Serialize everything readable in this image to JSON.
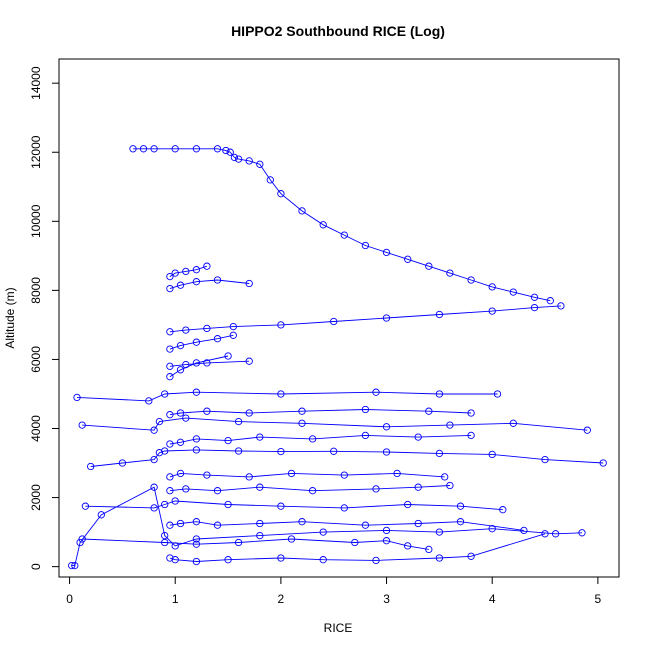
{
  "chart_data": {
    "type": "scatter",
    "title": "HIPPO2 Southbound RICE (Log)",
    "xlabel": "RICE",
    "ylabel": "Altitude (m)",
    "xlim": [
      -0.1,
      5.2
    ],
    "ylim": [
      -300,
      14700
    ],
    "x_ticks": [
      0,
      1,
      2,
      3,
      4,
      5
    ],
    "y_ticks": [
      0,
      2000,
      4000,
      6000,
      8000,
      10000,
      12000,
      14000
    ],
    "x_tick_labels": [
      "0",
      "1",
      "2",
      "3",
      "4",
      "5"
    ],
    "y_tick_labels": [
      "0",
      "2000",
      "4000",
      "6000",
      "8000",
      "10000",
      "12000",
      "14000"
    ],
    "marker": "open-circle",
    "connect_points": true,
    "color": "#0000ff",
    "series": [
      {
        "x": [
          0.02,
          0.05,
          0.1,
          0.3,
          0.8,
          0.9,
          1.0,
          1.2,
          1.8,
          2.4,
          3.0,
          3.5,
          4.0,
          4.6,
          4.85
        ],
        "y": [
          30,
          30,
          700,
          1500,
          2300,
          900,
          600,
          800,
          900,
          1000,
          1050,
          1000,
          1100,
          950,
          980
        ]
      },
      {
        "x": [
          0.2,
          0.5,
          0.8,
          0.85,
          0.9,
          1.2,
          1.6,
          2.0,
          2.5,
          3.0,
          3.5,
          4.0,
          4.5,
          5.05
        ],
        "y": [
          2900,
          3000,
          3100,
          3300,
          3350,
          3380,
          3350,
          3330,
          3340,
          3320,
          3280,
          3250,
          3100,
          3000
        ]
      },
      {
        "x": [
          0.12,
          0.8,
          0.85,
          1.1,
          1.6,
          2.2,
          3.0,
          3.6,
          4.2,
          4.9
        ],
        "y": [
          4100,
          3950,
          4200,
          4300,
          4200,
          4150,
          4050,
          4100,
          4150,
          3950
        ]
      },
      {
        "x": [
          0.07,
          0.75,
          0.9,
          1.2,
          2.0,
          2.9,
          3.5,
          4.05
        ],
        "y": [
          4900,
          4800,
          5000,
          5050,
          5000,
          5050,
          5000,
          5000
        ]
      },
      {
        "x": [
          0.15,
          0.8,
          0.9,
          1.0,
          1.5,
          2.0,
          2.6,
          3.2,
          3.7,
          4.1
        ],
        "y": [
          1750,
          1700,
          1800,
          1900,
          1800,
          1750,
          1700,
          1800,
          1750,
          1650
        ]
      },
      {
        "x": [
          0.12,
          0.9,
          1.2,
          1.6,
          2.1,
          2.7,
          3.0,
          3.2,
          3.4
        ],
        "y": [
          800,
          700,
          650,
          700,
          800,
          700,
          750,
          600,
          500
        ]
      },
      {
        "x": [
          0.95,
          1.0,
          1.2,
          1.5,
          2.0,
          2.4,
          2.9,
          3.5,
          3.8,
          4.5
        ],
        "y": [
          250,
          200,
          150,
          200,
          250,
          200,
          180,
          250,
          300,
          950
        ]
      },
      {
        "x": [
          0.95,
          1.05,
          1.2,
          1.4,
          1.8,
          2.2,
          2.8,
          3.3,
          3.7,
          4.3
        ],
        "y": [
          1200,
          1250,
          1300,
          1200,
          1250,
          1300,
          1200,
          1250,
          1300,
          1050
        ]
      },
      {
        "x": [
          0.95,
          1.1,
          1.4,
          1.8,
          2.3,
          2.9,
          3.3,
          3.6
        ],
        "y": [
          2200,
          2250,
          2200,
          2300,
          2200,
          2250,
          2300,
          2350
        ]
      },
      {
        "x": [
          0.95,
          1.05,
          1.3,
          1.7,
          2.1,
          2.6,
          3.1,
          3.55
        ],
        "y": [
          2600,
          2700,
          2650,
          2600,
          2700,
          2650,
          2700,
          2600
        ]
      },
      {
        "x": [
          0.95,
          1.05,
          1.2,
          1.5,
          1.8,
          2.3,
          2.8,
          3.3,
          3.8
        ],
        "y": [
          3550,
          3600,
          3700,
          3650,
          3750,
          3700,
          3800,
          3750,
          3800
        ]
      },
      {
        "x": [
          0.95,
          1.05,
          1.3,
          1.7,
          2.2,
          2.8,
          3.4,
          3.8
        ],
        "y": [
          4400,
          4450,
          4500,
          4450,
          4500,
          4550,
          4500,
          4450
        ]
      },
      {
        "x": [
          0.95,
          1.05,
          1.2,
          1.5
        ],
        "y": [
          5500,
          5700,
          5900,
          6100
        ]
      },
      {
        "x": [
          0.95,
          1.1,
          1.3,
          1.7
        ],
        "y": [
          5800,
          5850,
          5900,
          5950
        ]
      },
      {
        "x": [
          0.95,
          1.05,
          1.2,
          1.4,
          1.55
        ],
        "y": [
          6300,
          6400,
          6500,
          6600,
          6700
        ]
      },
      {
        "x": [
          0.95,
          1.1,
          1.3,
          1.55,
          2.0,
          2.5,
          3.0,
          3.5,
          4.0,
          4.4,
          4.65
        ],
        "y": [
          6800,
          6850,
          6900,
          6950,
          7000,
          7100,
          7200,
          7300,
          7400,
          7500,
          7550
        ]
      },
      {
        "x": [
          0.95,
          1.05,
          1.2,
          1.4,
          1.7
        ],
        "y": [
          8050,
          8150,
          8250,
          8300,
          8200
        ]
      },
      {
        "x": [
          0.95,
          1.0,
          1.1,
          1.2,
          1.3
        ],
        "y": [
          8400,
          8500,
          8550,
          8600,
          8700
        ]
      },
      {
        "x": [
          0.6,
          0.7,
          0.8,
          1.0,
          1.2,
          1.4,
          1.48,
          1.52,
          1.56,
          1.6,
          1.7,
          1.8,
          1.9,
          2.0,
          2.2,
          2.4,
          2.6,
          2.8,
          3.0,
          3.2,
          3.4,
          3.6,
          3.8,
          4.0,
          4.2,
          4.4,
          4.55
        ],
        "y": [
          12100,
          12100,
          12100,
          12100,
          12100,
          12100,
          12050,
          12000,
          11850,
          11800,
          11750,
          11650,
          11200,
          10800,
          10300,
          9900,
          9600,
          9300,
          9100,
          8900,
          8700,
          8500,
          8300,
          8100,
          7950,
          7800,
          7700
        ]
      }
    ]
  }
}
